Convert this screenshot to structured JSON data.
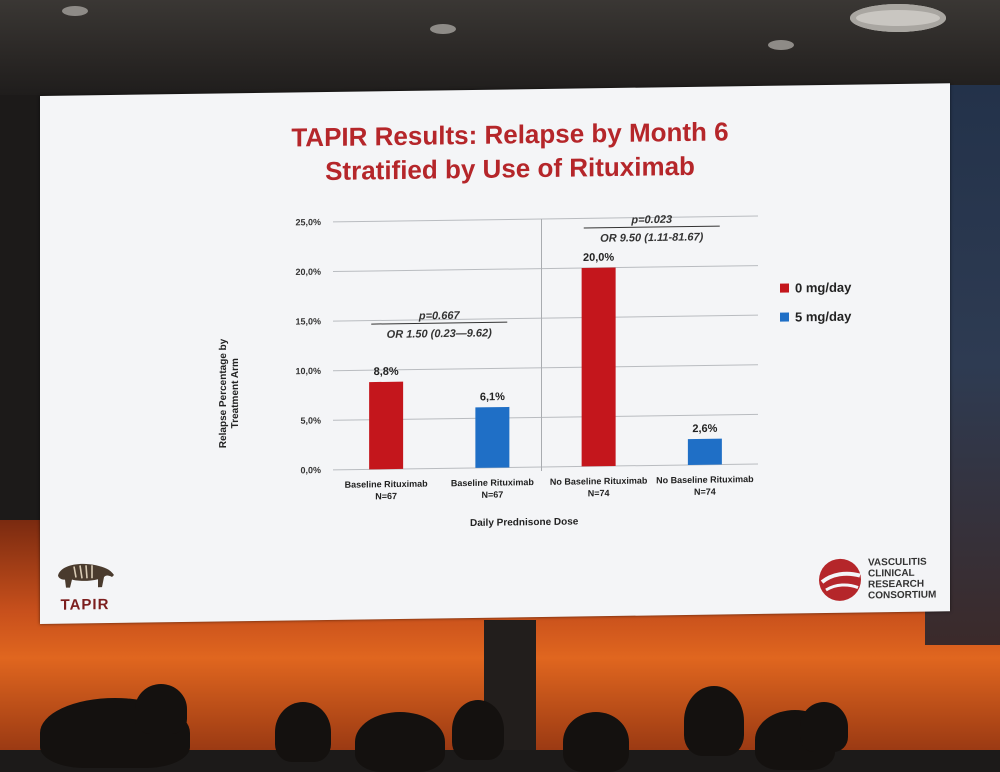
{
  "slide": {
    "title_line1": "TAPIR Results: Relapse by Month 6",
    "title_line2": "Stratified by Use of Rituximab"
  },
  "logos": {
    "left_label": "TAPIR",
    "right_lines": [
      "VASCULITIS",
      "CLINICAL",
      "RESEARCH",
      "CONSORTIUM"
    ]
  },
  "chart_data": {
    "type": "bar",
    "ylabel": "Relapse Percentage by Treatment Arm",
    "xlabel": "Daily Prednisone Dose",
    "ylim": [
      0,
      25
    ],
    "yticks": [
      "0,0%",
      "5,0%",
      "10,0%",
      "15,0%",
      "20,0%",
      "25,0%"
    ],
    "grid": true,
    "legend_position": "right",
    "categories": [
      {
        "label": "Baseline Rituximab",
        "n": "N=67"
      },
      {
        "label": "Baseline Rituximab",
        "n": "N=67"
      },
      {
        "label": "No Baseline Rituximab",
        "n": "N=74"
      },
      {
        "label": "No Baseline Rituximab",
        "n": "N=74"
      }
    ],
    "series": [
      {
        "name": "0 mg/day",
        "color": "#c4161c"
      },
      {
        "name": "5 mg/day",
        "color": "#1f6fc6"
      }
    ],
    "bars": [
      {
        "value": 8.8,
        "label": "8,8%",
        "series": 0
      },
      {
        "value": 6.1,
        "label": "6,1%",
        "series": 1
      },
      {
        "value": 20.0,
        "label": "20,0%",
        "series": 0
      },
      {
        "value": 2.6,
        "label": "2,6%",
        "series": 1
      }
    ],
    "annotations": [
      {
        "p": "p=0.667",
        "or": "OR 1.50 (0.23—9.62)"
      },
      {
        "p": "p=0.023",
        "or": "OR 9.50 (1.11-81.67)"
      }
    ]
  }
}
